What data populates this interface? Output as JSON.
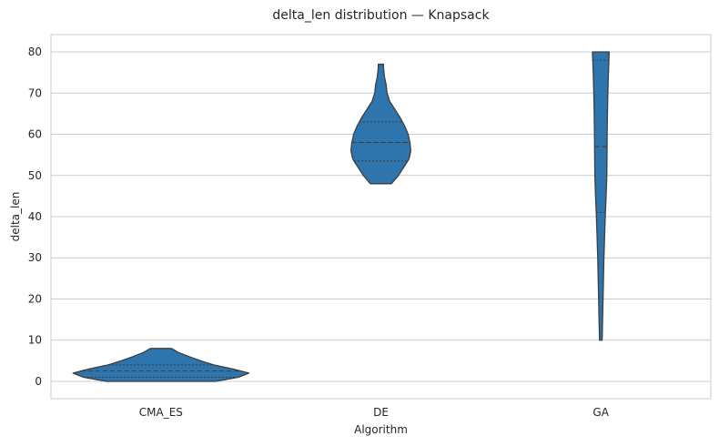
{
  "chart_data": {
    "type": "violin",
    "title": "delta_len distribution — Knapsack",
    "xlabel": "Algorithm",
    "ylabel": "delta_len",
    "categories": [
      "CMA_ES",
      "DE",
      "GA"
    ],
    "ylim": [
      -4.2,
      84.2
    ],
    "yticks": [
      0,
      10,
      20,
      30,
      40,
      50,
      60,
      70,
      80
    ],
    "grid": "horizontal",
    "color": "#2e75ad",
    "edge_color": "#3d3d3d",
    "violins": [
      {
        "category": "CMA_ES",
        "min": 0,
        "max": 8,
        "q1": 1,
        "median": 2.5,
        "q3": 4,
        "profile": [
          [
            0,
            0.62
          ],
          [
            1,
            0.88
          ],
          [
            2,
            1.0
          ],
          [
            3,
            0.82
          ],
          [
            4,
            0.6
          ],
          [
            5,
            0.45
          ],
          [
            6,
            0.32
          ],
          [
            7,
            0.2
          ],
          [
            8,
            0.12
          ]
        ]
      },
      {
        "category": "DE",
        "min": 48,
        "max": 77,
        "q1": 53.5,
        "median": 58,
        "q3": 63,
        "profile": [
          [
            48,
            0.12
          ],
          [
            50,
            0.2
          ],
          [
            52,
            0.26
          ],
          [
            54,
            0.32
          ],
          [
            56,
            0.34
          ],
          [
            58,
            0.33
          ],
          [
            60,
            0.31
          ],
          [
            62,
            0.27
          ],
          [
            64,
            0.22
          ],
          [
            66,
            0.16
          ],
          [
            68,
            0.1
          ],
          [
            70,
            0.07
          ],
          [
            72,
            0.06
          ],
          [
            74,
            0.04
          ],
          [
            76,
            0.03
          ],
          [
            77,
            0.03
          ]
        ]
      },
      {
        "category": "GA",
        "min": 10,
        "max": 80,
        "q1": 41,
        "median": 57,
        "q3": 78,
        "profile": [
          [
            10,
            0.015
          ],
          [
            15,
            0.02
          ],
          [
            20,
            0.025
          ],
          [
            30,
            0.035
          ],
          [
            40,
            0.05
          ],
          [
            45,
            0.06
          ],
          [
            50,
            0.068
          ],
          [
            55,
            0.07
          ],
          [
            60,
            0.072
          ],
          [
            65,
            0.075
          ],
          [
            70,
            0.08
          ],
          [
            74,
            0.085
          ],
          [
            77,
            0.09
          ],
          [
            80,
            0.095
          ]
        ]
      }
    ]
  }
}
